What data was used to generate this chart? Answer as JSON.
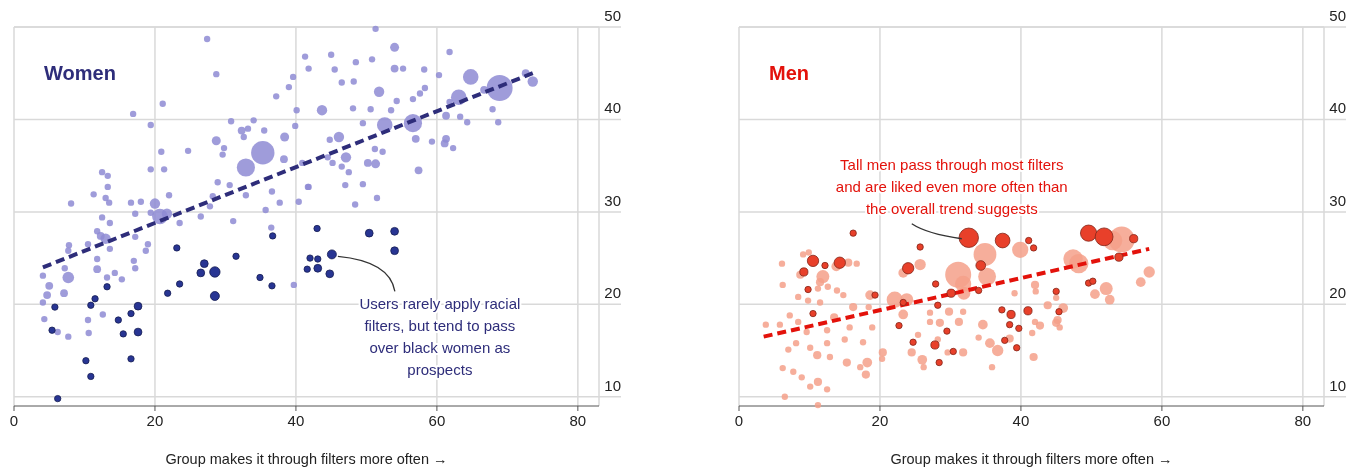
{
  "chart_data": [
    {
      "type": "bubble",
      "title": "Women",
      "xlabel": "Group makes it through filters more often →",
      "xlim": [
        0,
        83
      ],
      "xticks": [
        0,
        20,
        40,
        60,
        80
      ],
      "ylim": [
        9,
        50
      ],
      "yticks": [
        10,
        20,
        30,
        40,
        50
      ],
      "grid": true,
      "annotations": [
        {
          "text": "Users rarely apply racial filters, but tend to pass over black women as prospects",
          "x": 45.1,
          "y": 25.4
        }
      ],
      "series": [
        {
          "color": "#8e8bd4",
          "x": [
            27.4,
            28.7,
            21.1,
            16.9,
            19.4,
            30.8,
            32.3,
            33.2,
            34.0,
            35.5,
            32.6,
            28.7,
            38.4,
            35.3,
            32.9,
            38.3,
            29.8,
            29.6,
            20.9,
            24.7,
            19.4,
            21.3,
            28.9,
            30.6,
            32.9,
            36.6,
            37.7,
            28.2,
            22.0,
            20.0,
            20.7,
            21.7,
            19.4,
            16.6,
            18.0,
            12.5,
            13.3,
            13.3,
            11.3,
            8.1,
            13.0,
            13.5,
            12.5,
            13.6,
            11.8,
            13.0,
            12.3,
            10.5,
            13.6,
            7.8,
            7.7,
            11.8,
            11.8,
            7.7,
            7.2,
            5.0,
            4.7,
            7.1,
            4.1,
            4.3,
            6.2,
            7.7,
            10.6,
            10.5,
            4.1,
            17.2,
            17.0,
            18.7,
            19.0,
            17.2,
            17.2,
            13.2,
            15.3,
            14.3,
            12.6,
            23.5,
            26.5,
            27.8,
            31.1,
            35.7,
            36.5,
            39.7,
            39.0,
            41.3,
            39.6,
            37.2,
            40.1,
            39.9,
            40.4,
            41.7,
            51.3,
            54.0,
            50.8,
            48.5,
            45.0,
            41.8,
            45.5,
            46.5,
            48.2,
            54.0,
            55.2,
            58.2,
            61.8,
            60.3,
            64.8,
            63.1,
            68.9,
            66.7,
            73.6,
            72.6,
            67.9,
            68.7,
            64.3,
            63.3,
            61.3,
            61.8,
            56.6,
            52.6,
            57.0,
            59.3,
            61.3,
            61.1,
            62.3,
            51.8,
            50.6,
            53.5,
            54.3,
            56.6,
            57.6,
            58.3,
            43.7,
            48.1,
            49.5,
            46.1,
            47.1,
            51.2,
            52.3,
            50.2,
            51.3,
            46.5,
            47.5,
            57.4,
            49.5,
            47.0,
            51.5,
            48.4,
            41.8,
            44.8,
            44.5,
            45.2,
            40.9
          ],
          "values": [
            48.7,
            44.9,
            41.7,
            40.6,
            39.4,
            39.8,
            38.8,
            39.0,
            39.9,
            38.8,
            38.1,
            37.7,
            38.1,
            36.4,
            34.8,
            35.7,
            36.9,
            36.2,
            36.5,
            36.6,
            34.6,
            34.6,
            33.2,
            32.9,
            31.8,
            32.2,
            31.0,
            31.7,
            31.8,
            30.9,
            29.5,
            29.8,
            29.9,
            31.0,
            31.1,
            34.3,
            33.9,
            32.7,
            31.9,
            30.9,
            31.5,
            31.0,
            29.4,
            28.8,
            27.9,
            27.1,
            27.4,
            26.5,
            26.0,
            26.4,
            25.8,
            24.9,
            23.8,
            22.9,
            23.9,
            22.0,
            21.0,
            21.2,
            23.1,
            18.4,
            17.0,
            16.5,
            16.9,
            18.3,
            20.2,
            23.9,
            24.7,
            25.8,
            26.5,
            27.3,
            29.8,
            22.9,
            22.7,
            23.4,
            18.9,
            28.8,
            29.5,
            30.6,
            29.0,
            30.2,
            28.3,
            22.1,
            43.5,
            46.8,
            44.6,
            42.5,
            41.0,
            39.3,
            31.1,
            32.7,
            49.8,
            47.8,
            46.5,
            46.2,
            47.0,
            45.5,
            45.4,
            44.0,
            44.1,
            45.5,
            45.5,
            45.4,
            47.3,
            44.8,
            44.6,
            42.4,
            43.4,
            43.2,
            44.1,
            45.0,
            41.1,
            39.7,
            39.7,
            40.3,
            40.4,
            41.9,
            39.6,
            39.4,
            37.9,
            37.6,
            37.9,
            37.4,
            36.9,
            43.0,
            41.1,
            41.0,
            42.0,
            42.2,
            42.8,
            43.4,
            41.0,
            41.2,
            39.6,
            38.1,
            35.9,
            36.8,
            36.5,
            35.3,
            35.2,
            34.9,
            34.3,
            34.5,
            33.0,
            32.9,
            31.5,
            30.8,
            32.7,
            37.8,
            35.9,
            35.3,
            35.3
          ],
          "sizes": [
            0.06,
            0.06,
            0.06,
            0.06,
            0.06,
            0.06,
            0.09,
            0.06,
            0.06,
            0.06,
            0.06,
            0.12,
            0.12,
            0.81,
            0.49,
            0.09,
            0.06,
            0.06,
            0.06,
            0.06,
            0.06,
            0.06,
            0.06,
            0.06,
            0.06,
            0.06,
            0.06,
            0.06,
            0.06,
            0.16,
            0.36,
            0.16,
            0.06,
            0.06,
            0.06,
            0.06,
            0.06,
            0.06,
            0.06,
            0.06,
            0.06,
            0.06,
            0.06,
            0.06,
            0.06,
            0.16,
            0.09,
            0.06,
            0.06,
            0.06,
            0.06,
            0.06,
            0.09,
            0.2,
            0.06,
            0.09,
            0.09,
            0.09,
            0.06,
            0.06,
            0.06,
            0.06,
            0.06,
            0.06,
            0.06,
            0.06,
            0.06,
            0.06,
            0.06,
            0.06,
            0.06,
            0.06,
            0.06,
            0.06,
            0.06,
            0.06,
            0.06,
            0.06,
            0.06,
            0.06,
            0.06,
            0.06,
            0.06,
            0.06,
            0.06,
            0.06,
            0.06,
            0.06,
            0.06,
            0.06,
            0.06,
            0.12,
            0.06,
            0.06,
            0.06,
            0.06,
            0.06,
            0.06,
            0.06,
            0.09,
            0.06,
            0.06,
            0.06,
            0.06,
            0.36,
            0.36,
            1,
            0.09,
            0.16,
            0.09,
            0.06,
            0.06,
            0.06,
            0.06,
            0.09,
            0.06,
            0.49,
            0.36,
            0.09,
            0.06,
            0.09,
            0.09,
            0.06,
            0.16,
            0.06,
            0.06,
            0.06,
            0.06,
            0.06,
            0.06,
            0.16,
            0.06,
            0.06,
            0.16,
            0.16,
            0.06,
            0.06,
            0.09,
            0.12,
            0.06,
            0.06,
            0.09,
            0.06,
            0.06,
            0.06,
            0.06,
            0.06,
            0.06,
            0.06,
            0.06,
            0.06
          ]
        },
        {
          "type": "line",
          "color": "#2e2d7a",
          "line_style": "dashed",
          "x": [
            4.1,
            73.6
          ],
          "values": [
            24.0,
            45.0
          ]
        },
        {
          "color": "#283593",
          "x": [
            36.7,
            23.1,
            31.5,
            27.0,
            26.5,
            28.5,
            34.9,
            36.6,
            23.5,
            21.8,
            28.5,
            13.2,
            11.5,
            10.9,
            17.6,
            5.8,
            16.6,
            14.8,
            17.6,
            15.5,
            5.4,
            10.2,
            16.6,
            10.9,
            6.2,
            43.0,
            50.4,
            54.0,
            54.0,
            42.0,
            43.1,
            45.1,
            41.6,
            43.1,
            44.8
          ],
          "values": [
            27.4,
            26.1,
            25.2,
            24.4,
            23.4,
            23.5,
            22.9,
            22.0,
            22.2,
            21.2,
            20.9,
            21.9,
            20.6,
            19.9,
            19.8,
            19.7,
            19.0,
            18.3,
            17.0,
            16.8,
            17.2,
            13.9,
            14.1,
            12.2,
            9.8,
            28.2,
            27.7,
            27.9,
            25.8,
            25.0,
            24.9,
            25.4,
            23.8,
            23.9,
            23.3
          ],
          "sizes": [
            0.06,
            0.06,
            0.06,
            0.09,
            0.09,
            0.16,
            0.06,
            0.06,
            0.06,
            0.06,
            0.12,
            0.06,
            0.06,
            0.06,
            0.09,
            0.06,
            0.06,
            0.06,
            0.09,
            0.06,
            0.06,
            0.06,
            0.06,
            0.06,
            0.06,
            0.06,
            0.09,
            0.09,
            0.09,
            0.06,
            0.06,
            0.12,
            0.06,
            0.09,
            0.09
          ]
        }
      ]
    },
    {
      "type": "bubble",
      "title": "Men",
      "xlabel": "Group makes it through filters more often →",
      "xlim": [
        0,
        83
      ],
      "xticks": [
        0,
        20,
        40,
        60,
        80
      ],
      "ylim": [
        9,
        50
      ],
      "yticks": [
        10,
        20,
        30,
        40,
        50
      ],
      "grid": true,
      "annotations": [
        {
          "text": "Tall men pass through most filters and are liked even more often than the overall trend suggests",
          "x": 32.6,
          "y": 27.2
        }
      ],
      "series": [
        {
          "color": "#f4a08a",
          "x": [
            9.9,
            9.1,
            6.1,
            11.9,
            11.5,
            8.7,
            6.2,
            11.2,
            12.6,
            13.9,
            16.7,
            15.5,
            13.8,
            14.8,
            8.4,
            9.8,
            11.5,
            16.2,
            18.6,
            18.4,
            13.5,
            7.2,
            5.8,
            3.8,
            8.4,
            9.6,
            12.5,
            15.7,
            18.9,
            17.6,
            15.0,
            12.5,
            8.1,
            10.1,
            7.0,
            11.1,
            12.9,
            15.3,
            17.2,
            18.2,
            18.0,
            20.4,
            20.3,
            6.2,
            7.7,
            8.9,
            11.2,
            10.1,
            12.5,
            6.5,
            11.2,
            22.1,
            23.8,
            23.3,
            25.7,
            23.3,
            27.1,
            25.4,
            26.0,
            24.5,
            26.2,
            28.5,
            31.2,
            29.8,
            31.8,
            29.6,
            31.8,
            34.6,
            34.0,
            35.6,
            36.7,
            35.9,
            38.4,
            41.6,
            41.8,
            31.1,
            31.8,
            34.9,
            35.2,
            31.9,
            39.9,
            42.0,
            42.1,
            39.1,
            27.1,
            28.2,
            54.3,
            53.0,
            47.4,
            48.2,
            58.2,
            57.0,
            52.1,
            50.5,
            52.6,
            45.0,
            43.8,
            46.0,
            45.2,
            42.0,
            42.7,
            45.0,
            45.5
          ],
          "values": [
            25.6,
            25.4,
            24.4,
            23.0,
            22.4,
            23.2,
            22.1,
            21.7,
            21.9,
            21.5,
            24.4,
            24.5,
            24.1,
            21.0,
            20.8,
            20.4,
            20.2,
            19.7,
            21.0,
            19.7,
            18.6,
            18.8,
            17.8,
            17.8,
            18.1,
            17.0,
            17.2,
            17.5,
            17.5,
            15.9,
            16.2,
            15.8,
            15.8,
            15.3,
            15.1,
            14.5,
            14.3,
            13.7,
            13.2,
            13.7,
            12.4,
            14.8,
            14.1,
            13.1,
            12.7,
            12.1,
            11.6,
            11.1,
            10.8,
            10.0,
            9.1,
            20.5,
            20.5,
            18.9,
            24.3,
            23.4,
            19.1,
            16.7,
            14.0,
            14.8,
            13.2,
            18.0,
            18.1,
            19.2,
            19.2,
            14.8,
            14.8,
            17.8,
            16.4,
            15.8,
            15.0,
            13.2,
            16.3,
            16.9,
            14.3,
            23.2,
            22.2,
            25.4,
            23.0,
            21.2,
            25.9,
            22.1,
            21.4,
            21.2,
            18.1,
            16.2,
            27.0,
            26.9,
            24.9,
            24.4,
            23.5,
            22.4,
            21.7,
            21.1,
            20.5,
            20.7,
            19.9,
            19.6,
            18.3,
            18.1,
            17.7,
            18.0,
            17.5
          ],
          "sizes": [
            0.06,
            0.06,
            0.06,
            0.25,
            0.1,
            0.1,
            0.06,
            0.06,
            0.06,
            0.06,
            0.06,
            0.1,
            0.14,
            0.06,
            0.06,
            0.06,
            0.06,
            0.1,
            0.14,
            0.06,
            0.1,
            0.06,
            0.06,
            0.06,
            0.06,
            0.06,
            0.06,
            0.06,
            0.06,
            0.06,
            0.06,
            0.06,
            0.06,
            0.06,
            0.06,
            0.1,
            0.06,
            0.1,
            0.06,
            0.14,
            0.1,
            0.1,
            0.06,
            0.06,
            0.06,
            0.06,
            0.1,
            0.06,
            0.06,
            0.06,
            0.06,
            0.39,
            0.25,
            0.14,
            0.19,
            0.14,
            0.06,
            0.06,
            0.14,
            0.1,
            0.06,
            0.1,
            0.1,
            0.1,
            0.06,
            0.06,
            0.1,
            0.14,
            0.06,
            0.14,
            0.19,
            0.06,
            0.1,
            0.06,
            0.1,
            1,
            0.39,
            0.77,
            0.47,
            0.25,
            0.39,
            0.1,
            0.06,
            0.06,
            0.06,
            0.06,
            1,
            0.56,
            0.56,
            0.56,
            0.19,
            0.14,
            0.25,
            0.14,
            0.14,
            0.06,
            0.1,
            0.14,
            0.1,
            0.06,
            0.1,
            0.1,
            0.06
          ]
        },
        {
          "type": "line",
          "color": "#e3120b",
          "line_style": "dashed",
          "x": [
            3.5,
            58.2
          ],
          "values": [
            16.5,
            26.0
          ]
        },
        {
          "color": "#e8402a",
          "x": [
            32.6,
            37.4,
            41.1,
            41.8,
            16.2,
            25.7,
            10.5,
            12.2,
            14.3,
            9.2,
            24.0,
            34.3,
            9.8,
            19.3,
            27.9,
            30.1,
            34.0,
            23.3,
            28.2,
            10.5,
            22.7,
            29.5,
            24.7,
            27.8,
            30.4,
            28.4,
            37.3,
            38.6,
            38.4,
            41.0,
            39.7,
            37.7,
            39.4,
            49.6,
            51.8,
            56.0,
            53.9,
            49.6,
            50.2,
            45.0,
            45.4
          ],
          "values": [
            27.2,
            26.9,
            26.9,
            26.1,
            27.7,
            26.2,
            24.7,
            24.2,
            24.5,
            23.5,
            23.9,
            24.2,
            21.6,
            21.0,
            22.2,
            21.2,
            21.5,
            20.2,
            19.9,
            19.0,
            17.7,
            17.1,
            15.9,
            15.6,
            14.9,
            13.7,
            19.4,
            18.9,
            17.8,
            19.3,
            17.4,
            16.1,
            15.3,
            27.7,
            27.3,
            27.1,
            25.1,
            22.3,
            22.5,
            21.4,
            19.2
          ],
          "sizes": [
            0.56,
            0.32,
            0.06,
            0.06,
            0.06,
            0.06,
            0.19,
            0.06,
            0.19,
            0.1,
            0.19,
            0.14,
            0.06,
            0.06,
            0.06,
            0.1,
            0.06,
            0.06,
            0.06,
            0.06,
            0.06,
            0.06,
            0.06,
            0.1,
            0.06,
            0.06,
            0.06,
            0.1,
            0.06,
            0.1,
            0.06,
            0.06,
            0.06,
            0.39,
            0.47,
            0.1,
            0.1,
            0.06,
            0.06,
            0.06,
            0.06
          ]
        }
      ]
    }
  ]
}
